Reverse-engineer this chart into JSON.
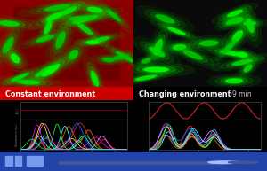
{
  "title_left": "Constant environment",
  "title_right": "Changing environment",
  "time_label": "69 min",
  "bg_color": "#000000",
  "header_bg_left": "#cc0000",
  "axis_color": "#555555",
  "tick_color": "#888888",
  "xlim": [
    0,
    1800
  ],
  "arabinose_color_left": "#660000",
  "arabinose_color_right": "#cc2222",
  "bottom_bar_color": "#2244aa",
  "fluorescence_colors": [
    "#ffff00",
    "#ff00ff",
    "#00ffff",
    "#ff6600",
    "#ff2222",
    "#00ff44",
    "#0066ff",
    "#ff66ff",
    "#44ffff"
  ],
  "fluorescence_colors_right": [
    "#ffff00",
    "#ff00ff",
    "#00ccff",
    "#ff6600",
    "#ff2222",
    "#00ff44",
    "#0066ff",
    "#ff88ff",
    "#44ffff"
  ]
}
